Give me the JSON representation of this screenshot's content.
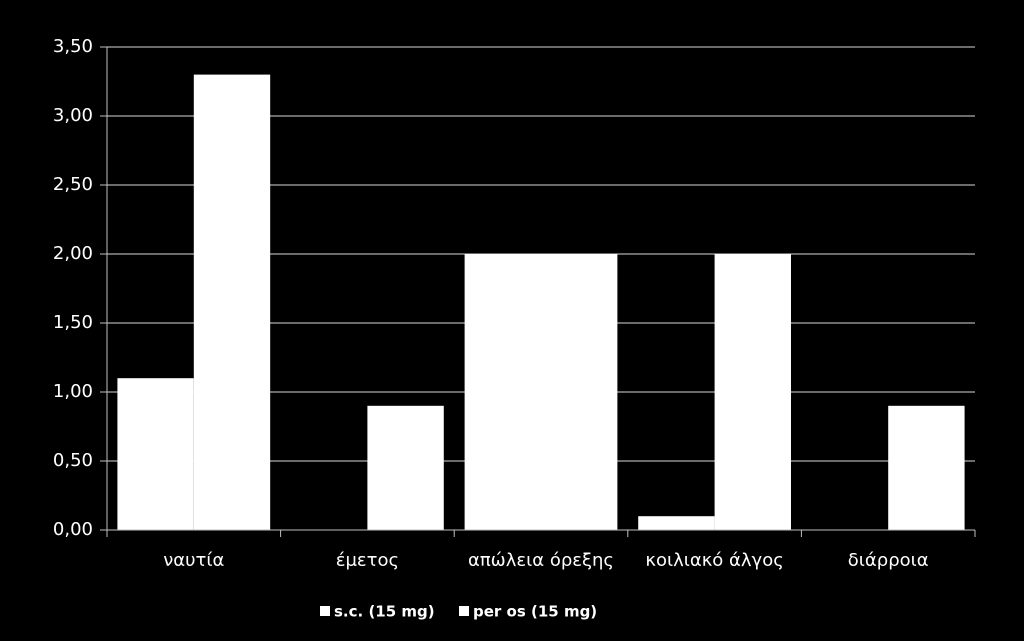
{
  "chart_data": {
    "type": "bar",
    "categories": [
      "ναυτία",
      "έμετος",
      "απώλεια όρεξης",
      "κοιλιακό άλγος",
      "διάρροια"
    ],
    "series": [
      {
        "name": "s.c. (15 mg)",
        "color": "#ffffff",
        "values": [
          1.1,
          0,
          2.0,
          0.1,
          0
        ]
      },
      {
        "name": "per os (15 mg)",
        "color": "#ffffff",
        "values": [
          3.3,
          0.9,
          2.0,
          2.0,
          0.9
        ]
      }
    ],
    "ylim": [
      0,
      3.5
    ],
    "yticks": [
      {
        "value": 0,
        "label": "0,00"
      },
      {
        "value": 0.5,
        "label": "0,50"
      },
      {
        "value": 1,
        "label": "1,00"
      },
      {
        "value": 1.5,
        "label": "1,50"
      },
      {
        "value": 2,
        "label": "2,00"
      },
      {
        "value": 2.5,
        "label": "2,50"
      },
      {
        "value": 3,
        "label": "3,00"
      },
      {
        "value": 3.5,
        "label": "3,50"
      }
    ],
    "grid": true,
    "legend": "bottom"
  }
}
